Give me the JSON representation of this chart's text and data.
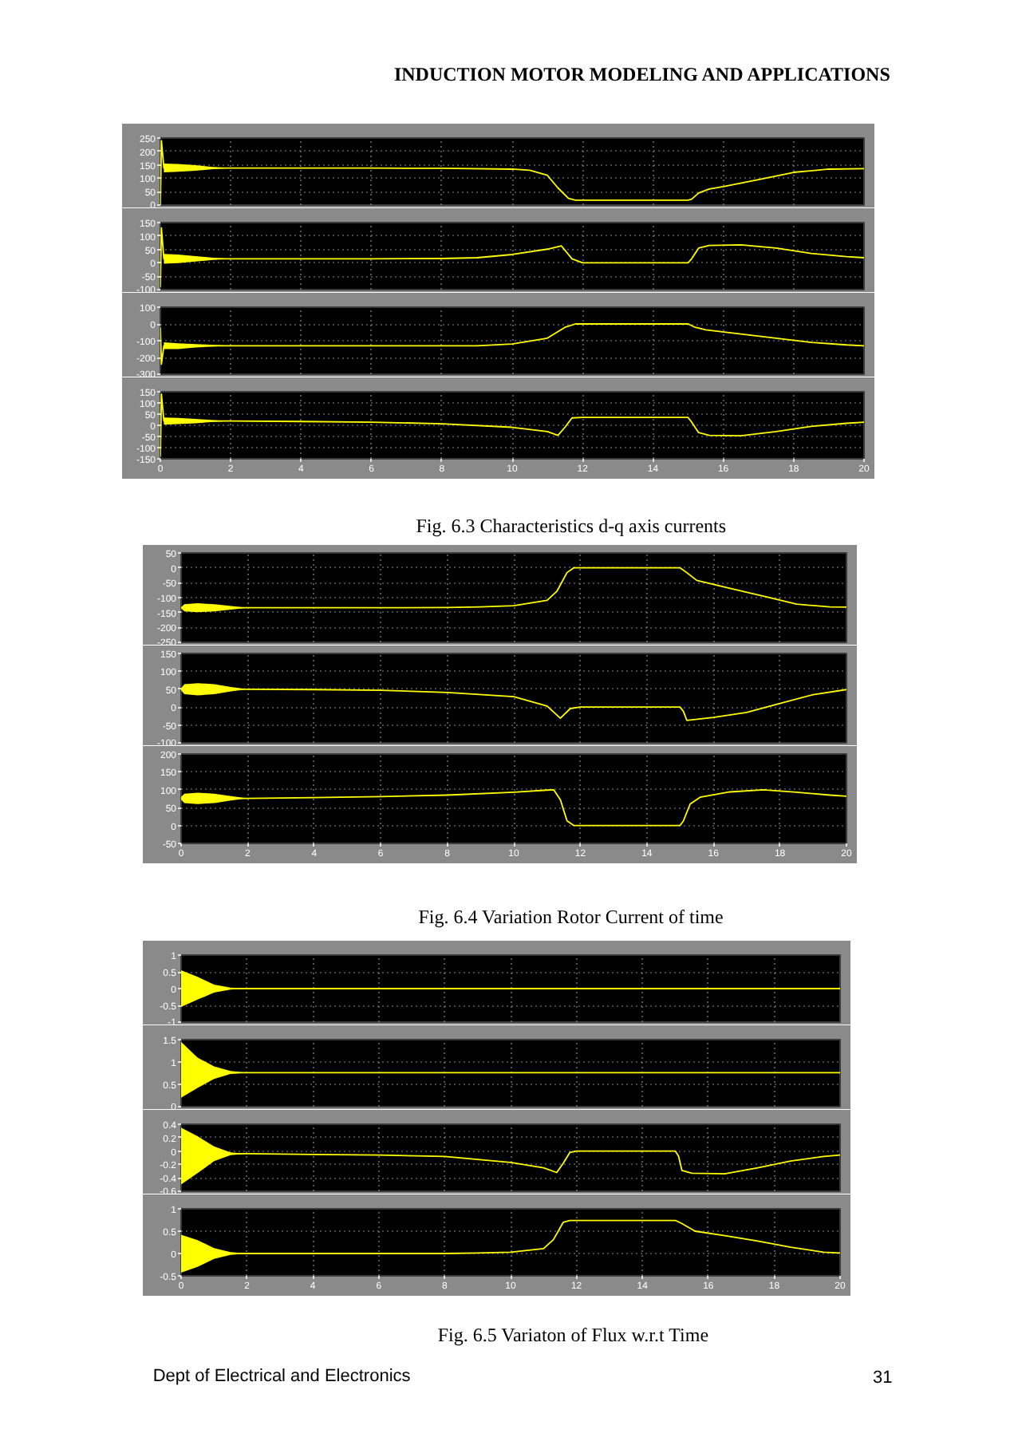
{
  "chart_data": [
    {
      "type": "line",
      "x": [
        0,
        0.03,
        0.1,
        0.5,
        1,
        1.5,
        2,
        4,
        6,
        8,
        10,
        10.5,
        11,
        11.3,
        11.6,
        11.8,
        13,
        15,
        15.1,
        15.3,
        15.6,
        16,
        17,
        18,
        19,
        20
      ],
      "xlim": [
        0,
        20
      ],
      "xticks": [
        0,
        2,
        4,
        6,
        8,
        10,
        12,
        14,
        16,
        18,
        20
      ],
      "ylim": [
        0,
        250
      ],
      "yticks": [
        0,
        50,
        100,
        150,
        200,
        250
      ],
      "grid": true,
      "tick_labels": "y",
      "annotations": [
        "INDUCTION MOTOR MODELING AND APPLICATIONS"
      ],
      "series": [
        {
          "color": "#ffff00",
          "values": [
            0,
            240,
            138,
            138,
            138,
            138,
            138,
            138,
            138,
            137,
            134,
            130,
            111,
            64,
            25,
            18,
            18,
            18,
            22,
            45,
            60,
            69,
            95,
            122,
            134,
            136
          ],
          "lower": [
            null,
            null,
            122,
            124,
            128,
            134,
            138,
            null,
            null,
            null,
            null,
            null,
            null,
            null,
            null,
            null,
            null,
            null,
            null,
            null,
            null,
            null,
            null,
            null,
            null,
            null
          ],
          "upper": [
            null,
            null,
            155,
            153,
            149,
            142,
            138,
            null,
            null,
            null,
            null,
            null,
            null,
            null,
            null,
            null,
            null,
            null,
            null,
            null,
            null,
            null,
            null,
            null,
            null,
            null
          ]
        }
      ]
    },
    {
      "type": "line",
      "x": [
        0,
        0.03,
        0.1,
        0.5,
        1,
        1.5,
        2,
        4,
        6,
        8,
        9,
        10,
        11,
        11.4,
        11.7,
        12,
        13,
        15,
        15.1,
        15.3,
        15.6,
        16.5,
        17.5,
        18.5,
        19.5,
        20
      ],
      "xlim": [
        0,
        20
      ],
      "xticks": [
        0,
        2,
        4,
        6,
        8,
        10,
        12,
        14,
        16,
        18,
        20
      ],
      "ylim": [
        -100,
        150
      ],
      "yticks": [
        -100,
        -50,
        0,
        50,
        100,
        150
      ],
      "grid": true,
      "tick_labels": "y",
      "series": [
        {
          "color": "#ffff00",
          "values": [
            -90,
            130,
            15,
            15,
            15,
            15,
            15,
            15,
            15,
            16,
            19,
            31,
            51,
            63,
            15,
            0,
            0,
            0,
            15,
            55,
            65,
            67,
            55,
            35,
            23,
            19
          ],
          "lower": [
            null,
            null,
            -3,
            -1,
            5,
            11,
            15,
            null,
            null,
            null,
            null,
            null,
            null,
            null,
            null,
            null,
            null,
            null,
            null,
            null,
            null,
            null,
            null,
            null,
            null,
            null
          ],
          "upper": [
            null,
            null,
            33,
            31,
            25,
            19,
            15,
            null,
            null,
            null,
            null,
            null,
            null,
            null,
            null,
            null,
            null,
            null,
            null,
            null,
            null,
            null,
            null,
            null,
            null,
            null
          ]
        }
      ]
    },
    {
      "type": "line",
      "x": [
        0,
        0.03,
        0.1,
        0.5,
        1,
        1.5,
        2,
        4,
        6,
        8,
        9,
        10,
        11,
        11.5,
        11.8,
        13,
        15,
        15.2,
        15.5,
        16.5,
        17.5,
        18.5,
        19.5,
        20
      ],
      "xlim": [
        0,
        20
      ],
      "xticks": [
        0,
        2,
        4,
        6,
        8,
        10,
        12,
        14,
        16,
        18,
        20
      ],
      "ylim": [
        -300,
        100
      ],
      "yticks": [
        -300,
        -200,
        -100,
        0,
        100
      ],
      "grid": true,
      "tick_labels": "y",
      "series": [
        {
          "color": "#ffff00",
          "values": [
            -20,
            -240,
            -130,
            -130,
            -130,
            -130,
            -130,
            -130,
            -130,
            -130,
            -130,
            -120,
            -85,
            -20,
            0,
            0,
            0,
            -20,
            -35,
            -60,
            -85,
            -110,
            -125,
            -130
          ],
          "lower": [
            null,
            null,
            -150,
            -150,
            -140,
            -135,
            -130,
            null,
            null,
            null,
            null,
            null,
            null,
            null,
            null,
            null,
            null,
            null,
            null,
            null,
            null,
            null,
            null,
            null
          ],
          "upper": [
            null,
            null,
            -110,
            -115,
            -120,
            -125,
            -130,
            null,
            null,
            null,
            null,
            null,
            null,
            null,
            null,
            null,
            null,
            null,
            null,
            null,
            null,
            null,
            null,
            null
          ]
        }
      ]
    },
    {
      "type": "line",
      "x": [
        0,
        0.03,
        0.1,
        0.5,
        1,
        1.5,
        2,
        4,
        6,
        8,
        10,
        11,
        11.3,
        11.5,
        11.7,
        12,
        13,
        15,
        15.1,
        15.3,
        15.6,
        16.5,
        17.5,
        18.5,
        19.5,
        20
      ],
      "xlim": [
        0,
        20
      ],
      "xticks": [
        0,
        2,
        4,
        6,
        8,
        10,
        12,
        14,
        16,
        18,
        20
      ],
      "ylim": [
        -150,
        150
      ],
      "yticks": [
        -150,
        -100,
        -50,
        0,
        50,
        100,
        150
      ],
      "grid": true,
      "annotations": [
        "Fig. 6.3  Characteristics d-q axis currents"
      ],
      "series": [
        {
          "color": "#ffff00",
          "values": [
            -140,
            140,
            19,
            19,
            19,
            19,
            19,
            17,
            14,
            7,
            -9,
            -28,
            -45,
            -9,
            33,
            35,
            35,
            35,
            14,
            -33,
            -45,
            -47,
            -28,
            -5,
            9,
            14
          ],
          "lower": [
            null,
            null,
            3,
            5,
            9,
            15,
            19,
            null,
            null,
            null,
            null,
            null,
            null,
            null,
            null,
            null,
            null,
            null,
            null,
            null,
            null,
            null,
            null,
            null,
            null,
            null
          ],
          "upper": [
            null,
            null,
            35,
            33,
            29,
            23,
            19,
            null,
            null,
            null,
            null,
            null,
            null,
            null,
            null,
            null,
            null,
            null,
            null,
            null,
            null,
            null,
            null,
            null,
            null,
            null
          ]
        }
      ]
    },
    {
      "type": "line",
      "x": [
        0,
        0.1,
        0.5,
        1,
        1.5,
        2,
        4,
        6,
        8,
        9,
        10,
        11,
        11.3,
        11.6,
        11.8,
        13,
        15,
        15.2,
        15.5,
        16.5,
        17.5,
        18.5,
        19.5,
        20
      ],
      "xlim": [
        0,
        20
      ],
      "xticks": [
        0,
        2,
        4,
        6,
        8,
        10,
        12,
        14,
        16,
        18,
        20
      ],
      "ylim": [
        -250,
        50
      ],
      "yticks": [
        -250,
        -200,
        -150,
        -100,
        -50,
        0,
        50
      ],
      "grid": true,
      "tick_labels": "y",
      "series": [
        {
          "color": "#ffff00",
          "values": [
            -134,
            -134,
            -134,
            -134,
            -134,
            -134,
            -134,
            -134,
            -133,
            -131,
            -127,
            -109,
            -78,
            -16,
            0,
            0,
            0,
            -16,
            -42,
            -69,
            -95,
            -122,
            -131,
            -132
          ],
          "lower": [
            -136,
            -146,
            -149,
            -146,
            -140,
            -134,
            null,
            null,
            null,
            null,
            null,
            null,
            null,
            null,
            null,
            null,
            null,
            null,
            null,
            null,
            null,
            null,
            null,
            null
          ],
          "upper": [
            -132,
            -122,
            -119,
            -122,
            -128,
            -134,
            null,
            null,
            null,
            null,
            null,
            null,
            null,
            null,
            null,
            null,
            null,
            null,
            null,
            null,
            null,
            null,
            null,
            null
          ]
        }
      ]
    },
    {
      "type": "line",
      "x": [
        0,
        0.1,
        0.5,
        1,
        1.5,
        2,
        4,
        6,
        8,
        10,
        11,
        11.4,
        11.7,
        12,
        13,
        15,
        15.1,
        15.2,
        16,
        17,
        18,
        19,
        20
      ],
      "xlim": [
        0,
        20
      ],
      "xticks": [
        0,
        2,
        4,
        6,
        8,
        10,
        12,
        14,
        16,
        18,
        20
      ],
      "ylim": [
        -100,
        150
      ],
      "yticks": [
        -100,
        -50,
        0,
        50,
        100,
        150
      ],
      "grid": true,
      "tick_labels": "y",
      "series": [
        {
          "color": "#ffff00",
          "values": [
            50,
            50,
            50,
            50,
            50,
            50,
            49,
            47,
            41,
            29,
            3,
            -31,
            -4,
            0,
            0,
            0,
            -12,
            -37,
            -29,
            -15,
            10,
            35,
            49
          ],
          "lower": [
            47,
            36,
            33,
            36,
            44,
            50,
            null,
            null,
            null,
            null,
            null,
            null,
            null,
            null,
            null,
            null,
            null,
            null,
            null,
            null,
            null,
            null,
            null
          ],
          "upper": [
            53,
            64,
            67,
            64,
            56,
            50,
            null,
            null,
            null,
            null,
            null,
            null,
            null,
            null,
            null,
            null,
            null,
            null,
            null,
            null,
            null,
            null,
            null
          ]
        }
      ]
    },
    {
      "type": "line",
      "x": [
        0,
        0.1,
        0.5,
        1,
        1.5,
        2,
        4,
        6,
        8,
        10,
        11,
        11.2,
        11.4,
        11.6,
        11.8,
        13,
        15,
        15.1,
        15.3,
        15.6,
        16.5,
        17.5,
        18.5,
        19.5,
        20
      ],
      "xlim": [
        0,
        20
      ],
      "xticks": [
        0,
        2,
        4,
        6,
        8,
        10,
        12,
        14,
        16,
        18,
        20
      ],
      "ylim": [
        -50,
        200
      ],
      "yticks": [
        -50,
        0,
        50,
        100,
        150,
        200
      ],
      "grid": true,
      "annotations": [
        "Fig. 6.4 Variation Rotor Current  of time"
      ],
      "series": [
        {
          "color": "#ffff00",
          "values": [
            76,
            76,
            76,
            76,
            76,
            76,
            78,
            81,
            85,
            93,
            99,
            100,
            72,
            13,
            0,
            0,
            0,
            13,
            60,
            79,
            94,
            100,
            93,
            85,
            82
          ],
          "lower": [
            72,
            63,
            60,
            63,
            70,
            76,
            null,
            null,
            null,
            null,
            null,
            null,
            null,
            null,
            null,
            null,
            null,
            null,
            null,
            null,
            null,
            null,
            null,
            null,
            null
          ],
          "upper": [
            80,
            89,
            92,
            89,
            82,
            76,
            null,
            null,
            null,
            null,
            null,
            null,
            null,
            null,
            null,
            null,
            null,
            null,
            null,
            null,
            null,
            null,
            null,
            null,
            null
          ]
        }
      ]
    },
    {
      "type": "line",
      "x": [
        0,
        0.5,
        1,
        1.5,
        2,
        4,
        6,
        8,
        10,
        12,
        14,
        16,
        18,
        20
      ],
      "xlim": [
        0,
        20
      ],
      "xticks": [
        0,
        2,
        4,
        6,
        8,
        10,
        12,
        14,
        16,
        18,
        20
      ],
      "ylim": [
        -1,
        1
      ],
      "yticks": [
        -1,
        -0.5,
        0,
        0.5,
        1
      ],
      "grid": true,
      "tick_labels": "y",
      "series": [
        {
          "color": "#ffff00",
          "values": [
            0,
            0,
            0,
            0,
            0,
            0,
            0,
            0,
            0,
            0,
            0,
            0,
            0,
            0
          ],
          "lower": [
            -0.55,
            -0.33,
            -0.12,
            -0.03,
            0,
            null,
            null,
            null,
            null,
            null,
            null,
            null,
            null,
            null
          ],
          "upper": [
            0.55,
            0.35,
            0.12,
            0.03,
            0,
            null,
            null,
            null,
            null,
            null,
            null,
            null,
            null,
            null
          ]
        }
      ]
    },
    {
      "type": "line",
      "x": [
        0,
        0.5,
        1,
        1.5,
        2,
        4,
        6,
        8,
        10,
        12,
        14,
        16,
        18,
        20
      ],
      "xlim": [
        0,
        20
      ],
      "xticks": [
        0,
        2,
        4,
        6,
        8,
        10,
        12,
        14,
        16,
        18,
        20
      ],
      "ylim": [
        0,
        1.5
      ],
      "yticks": [
        0,
        0.5,
        1,
        1.5
      ],
      "grid": true,
      "tick_labels": "y",
      "series": [
        {
          "color": "#ffff00",
          "values": [
            0.76,
            0.76,
            0.76,
            0.76,
            0.76,
            0.76,
            0.76,
            0.76,
            0.76,
            0.76,
            0.76,
            0.76,
            0.76,
            0.76
          ],
          "lower": [
            0.2,
            0.42,
            0.62,
            0.73,
            0.76,
            null,
            null,
            null,
            null,
            null,
            null,
            null,
            null,
            null
          ],
          "upper": [
            1.45,
            1.1,
            0.9,
            0.8,
            0.76,
            null,
            null,
            null,
            null,
            null,
            null,
            null,
            null,
            null
          ]
        }
      ]
    },
    {
      "type": "line",
      "x": [
        0,
        0.5,
        1,
        1.5,
        2,
        4,
        6,
        8,
        10,
        11,
        11.4,
        11.6,
        11.8,
        12,
        13,
        15,
        15.1,
        15.2,
        15.5,
        16.5,
        17.5,
        18.5,
        19.5,
        20
      ],
      "xlim": [
        0,
        20
      ],
      "xticks": [
        0,
        2,
        4,
        6,
        8,
        10,
        12,
        14,
        16,
        18,
        20
      ],
      "ylim": [
        -0.6,
        0.4
      ],
      "yticks": [
        -0.6,
        -0.4,
        -0.2,
        0,
        0.2,
        0.4
      ],
      "grid": true,
      "tick_labels": "y",
      "series": [
        {
          "color": "#ffff00",
          "values": [
            -0.04,
            -0.04,
            -0.04,
            -0.04,
            -0.04,
            -0.05,
            -0.06,
            -0.08,
            -0.17,
            -0.25,
            -0.32,
            -0.18,
            -0.02,
            0,
            0,
            0,
            -0.08,
            -0.29,
            -0.33,
            -0.34,
            -0.25,
            -0.15,
            -0.08,
            -0.06
          ],
          "lower": [
            -0.5,
            -0.33,
            -0.15,
            -0.06,
            -0.04,
            null,
            null,
            null,
            null,
            null,
            null,
            null,
            null,
            null,
            null,
            null,
            null,
            null,
            null,
            null,
            null,
            null,
            null,
            null
          ],
          "upper": [
            0.35,
            0.22,
            0.07,
            -0.02,
            -0.04,
            null,
            null,
            null,
            null,
            null,
            null,
            null,
            null,
            null,
            null,
            null,
            null,
            null,
            null,
            null,
            null,
            null,
            null,
            null
          ]
        }
      ]
    },
    {
      "type": "line",
      "x": [
        0,
        0.5,
        1,
        1.5,
        2,
        4,
        6,
        8,
        9,
        10,
        11,
        11.3,
        11.6,
        11.8,
        13,
        15,
        15.2,
        15.6,
        16.5,
        17.5,
        18.5,
        19.5,
        20
      ],
      "xlim": [
        0,
        20
      ],
      "xticks": [
        0,
        2,
        4,
        6,
        8,
        10,
        12,
        14,
        16,
        18,
        20
      ],
      "ylim": [
        -0.5,
        1
      ],
      "yticks": [
        -0.5,
        0,
        0.5,
        1
      ],
      "grid": true,
      "annotations": [
        "Fig. 6.5 Variaton of Flux w.r.t Time",
        "Dept of Electrical and Electronics",
        "31"
      ],
      "series": [
        {
          "color": "#ffff00",
          "values": [
            0,
            0,
            0,
            0,
            0,
            0,
            0,
            0,
            0.01,
            0.03,
            0.11,
            0.31,
            0.7,
            0.74,
            0.74,
            0.74,
            0.67,
            0.5,
            0.4,
            0.28,
            0.14,
            0.03,
            0.01
          ],
          "lower": [
            -0.43,
            -0.3,
            -0.12,
            -0.03,
            0,
            null,
            null,
            null,
            null,
            null,
            null,
            null,
            null,
            null,
            null,
            null,
            null,
            null,
            null,
            null,
            null,
            null,
            null
          ],
          "upper": [
            0.42,
            0.3,
            0.12,
            0.03,
            0,
            null,
            null,
            null,
            null,
            null,
            null,
            null,
            null,
            null,
            null,
            null,
            null,
            null,
            null,
            null,
            null,
            null,
            null
          ]
        }
      ]
    }
  ]
}
